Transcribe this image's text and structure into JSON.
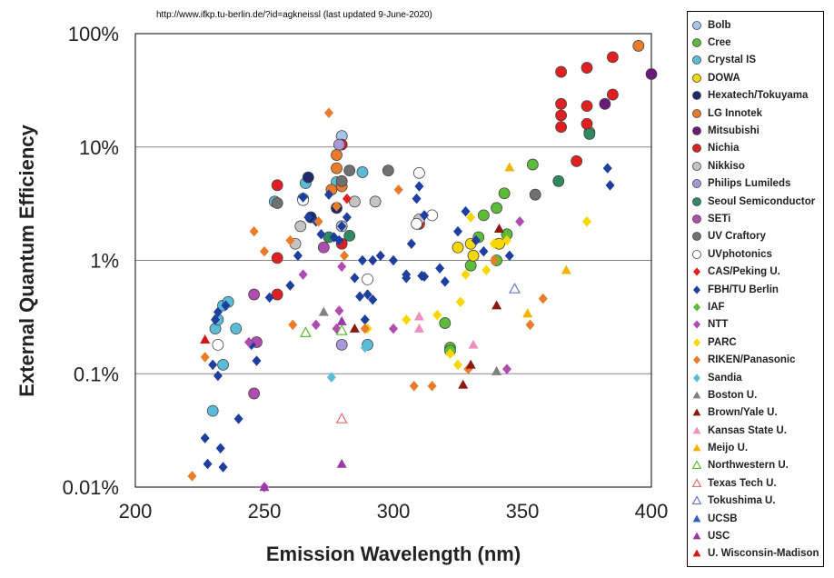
{
  "note": "http://www.ifkp.tu-berlin.de/?id=agkneissl   (last updated 9-June-2020)",
  "chart_data": {
    "type": "scatter",
    "xlabel": "Emission Wavelength (nm)",
    "ylabel": "External Quantum Efficiency",
    "xlim": [
      200,
      400
    ],
    "ylim": [
      0.01,
      100
    ],
    "yscale": "log",
    "x_ticks": [
      "200",
      "250",
      "300",
      "350",
      "400"
    ],
    "y_ticks": [
      "0.01%",
      "0.1%",
      "1%",
      "10%",
      "100%"
    ],
    "grid": "horizontal",
    "legend_position": "right",
    "series": [
      {
        "name": "Bolb",
        "marker": "circle",
        "color": "#a8c4e8",
        "points": [
          [
            280,
            12.5
          ]
        ]
      },
      {
        "name": "Cree",
        "marker": "circle",
        "color": "#5dbb3a",
        "points": [
          [
            322,
            0.17
          ],
          [
            330,
            0.9
          ],
          [
            333,
            1.6
          ],
          [
            335,
            2.5
          ],
          [
            340,
            2.9
          ],
          [
            341,
            1.4
          ],
          [
            343,
            3.9
          ],
          [
            344,
            1.7
          ],
          [
            340,
            1.0
          ],
          [
            354,
            7.0
          ],
          [
            376,
            13.5
          ],
          [
            322,
            0.16
          ],
          [
            320,
            0.28
          ]
        ]
      },
      {
        "name": "Crystal IS",
        "marker": "circle",
        "color": "#5bbcd8",
        "points": [
          [
            230,
            0.047
          ],
          [
            231,
            0.25
          ],
          [
            232,
            0.3
          ],
          [
            234,
            0.4
          ],
          [
            236,
            0.43
          ],
          [
            239,
            0.25
          ],
          [
            234,
            0.12
          ],
          [
            254,
            3.3
          ],
          [
            265,
            3.5
          ],
          [
            266,
            4.8
          ],
          [
            278,
            4.9
          ],
          [
            288,
            6.0
          ],
          [
            290,
            0.18
          ]
        ]
      },
      {
        "name": "DOWA",
        "marker": "circle",
        "color": "#f5d800",
        "points": [
          [
            325,
            1.3
          ],
          [
            330,
            1.4
          ],
          [
            341,
            1.4
          ],
          [
            331,
            1.1
          ]
        ]
      },
      {
        "name": "Hexatech/Tokuyama",
        "marker": "circle",
        "color": "#1a2a6c",
        "points": [
          [
            267,
            5.4
          ],
          [
            268,
            2.4
          ],
          [
            278,
            2.9
          ]
        ]
      },
      {
        "name": "LG Innotek",
        "marker": "circle",
        "color": "#e97c2a",
        "points": [
          [
            276,
            4.2
          ],
          [
            278,
            6.5
          ],
          [
            278,
            8.5
          ],
          [
            280,
            4.5
          ],
          [
            395,
            78
          ]
        ]
      },
      {
        "name": "Mitsubishi",
        "marker": "circle",
        "color": "#6a1a78",
        "points": [
          [
            382,
            24
          ],
          [
            400,
            44
          ]
        ]
      },
      {
        "name": "Nichia",
        "marker": "circle",
        "color": "#e02020",
        "points": [
          [
            255,
            4.6
          ],
          [
            255,
            1.05
          ],
          [
            255,
            0.5
          ],
          [
            280,
            10.5
          ],
          [
            280,
            1.4
          ],
          [
            365,
            46
          ],
          [
            365,
            24
          ],
          [
            365,
            19
          ],
          [
            365,
            15
          ],
          [
            375,
            50
          ],
          [
            375,
            23
          ],
          [
            375,
            16
          ],
          [
            385,
            62
          ],
          [
            385,
            29
          ],
          [
            371,
            7.5
          ],
          [
            310,
            2.1
          ]
        ]
      },
      {
        "name": "Nikkiso",
        "marker": "circle",
        "color": "#c4c4c4",
        "points": [
          [
            262,
            1.4
          ],
          [
            264,
            2.0
          ],
          [
            280,
            2.0
          ],
          [
            285,
            3.3
          ],
          [
            293,
            3.3
          ],
          [
            310,
            2.3
          ]
        ]
      },
      {
        "name": "Philips Lumileds",
        "marker": "circle",
        "color": "#a898d8",
        "points": [
          [
            279,
            10.5
          ],
          [
            280,
            0.18
          ]
        ]
      },
      {
        "name": "Seoul Semiconductor",
        "marker": "circle",
        "color": "#2f8a60",
        "points": [
          [
            275,
            1.6
          ],
          [
            283,
            1.65
          ],
          [
            364,
            5.0
          ],
          [
            376,
            13.0
          ]
        ]
      },
      {
        "name": "SETi",
        "marker": "circle",
        "color": "#b04cb0",
        "points": [
          [
            246,
            0.5
          ],
          [
            246,
            0.067
          ],
          [
            247,
            0.19
          ],
          [
            273,
            1.3
          ]
        ]
      },
      {
        "name": "UV Craftory",
        "marker": "circle",
        "color": "#707070",
        "points": [
          [
            255,
            3.2
          ],
          [
            280,
            5.0
          ],
          [
            283,
            6.2
          ],
          [
            298,
            6.2
          ],
          [
            355,
            3.8
          ]
        ]
      },
      {
        "name": "UVphotonics",
        "marker": "circle",
        "color": "#ffffff",
        "points": [
          [
            232,
            0.18
          ],
          [
            265,
            3.4
          ],
          [
            290,
            0.68
          ],
          [
            309,
            2.1
          ],
          [
            310,
            5.9
          ],
          [
            315,
            2.5
          ]
        ]
      },
      {
        "name": "CAS/Peking U.",
        "marker": "diamond",
        "color": "#e02020",
        "points": [
          [
            282,
            3.5
          ]
        ]
      },
      {
        "name": "FBH/TU Berlin",
        "marker": "diamond",
        "color": "#1f3f9f",
        "points": [
          [
            227,
            0.027
          ],
          [
            228,
            0.016
          ],
          [
            230,
            0.12
          ],
          [
            232,
            0.096
          ],
          [
            233,
            0.022
          ],
          [
            234,
            0.015
          ],
          [
            231,
            0.3
          ],
          [
            232,
            0.35
          ],
          [
            235,
            0.4
          ],
          [
            240,
            0.04
          ],
          [
            245,
            0.18
          ],
          [
            247,
            0.13
          ],
          [
            252,
            0.47
          ],
          [
            260,
            0.6
          ],
          [
            263,
            1.1
          ],
          [
            265,
            3.6
          ],
          [
            267,
            2.4
          ],
          [
            270,
            2.2
          ],
          [
            272,
            1.7
          ],
          [
            275,
            3.8
          ],
          [
            277,
            1.6
          ],
          [
            279,
            1.5
          ],
          [
            280,
            2.0
          ],
          [
            282,
            2.4
          ],
          [
            285,
            0.7
          ],
          [
            288,
            1.0
          ],
          [
            290,
            0.5
          ],
          [
            292,
            1.0
          ],
          [
            295,
            1.1
          ],
          [
            300,
            1.0
          ],
          [
            305,
            0.7
          ],
          [
            307,
            1.4
          ],
          [
            309,
            3.5
          ],
          [
            310,
            4.5
          ],
          [
            311,
            0.73
          ],
          [
            312,
            2.5
          ],
          [
            318,
            0.85
          ],
          [
            320,
            0.65
          ],
          [
            325,
            1.8
          ],
          [
            328,
            2.7
          ],
          [
            332,
            1.5
          ],
          [
            335,
            1.2
          ],
          [
            345,
            1.1
          ],
          [
            383,
            6.5
          ],
          [
            384,
            4.6
          ],
          [
            292,
            0.45
          ],
          [
            289,
            0.3
          ],
          [
            305,
            0.75
          ],
          [
            312,
            0.72
          ],
          [
            287,
            0.48
          ]
        ]
      },
      {
        "name": "IAF",
        "marker": "diamond",
        "color": "#5dbb3a",
        "points": []
      },
      {
        "name": "NTT",
        "marker": "diamond",
        "color": "#b04cb0",
        "points": [
          [
            244,
            0.19
          ],
          [
            250,
            0.01
          ],
          [
            265,
            0.75
          ],
          [
            270,
            0.27
          ],
          [
            278,
            0.25
          ],
          [
            279,
            0.36
          ],
          [
            280,
            0.88
          ],
          [
            300,
            0.25
          ],
          [
            344,
            0.11
          ],
          [
            349,
            2.2
          ]
        ]
      },
      {
        "name": "PARC",
        "marker": "diamond",
        "color": "#f5d800",
        "points": [
          [
            290,
            0.25
          ],
          [
            305,
            0.3
          ],
          [
            317,
            0.33
          ],
          [
            322,
            0.15
          ],
          [
            326,
            0.43
          ],
          [
            328,
            0.75
          ],
          [
            330,
            2.4
          ],
          [
            336,
            0.82
          ],
          [
            339,
            1.4
          ],
          [
            344,
            1.5
          ],
          [
            375,
            2.2
          ],
          [
            325,
            0.12
          ]
        ]
      },
      {
        "name": "RIKEN/Panasonic",
        "marker": "diamond",
        "color": "#e97c2a",
        "points": [
          [
            222,
            0.0125
          ],
          [
            227,
            0.14
          ],
          [
            246,
            1.8
          ],
          [
            250,
            1.2
          ],
          [
            261,
            0.27
          ],
          [
            271,
            2.2
          ],
          [
            275,
            20
          ],
          [
            278,
            3.0
          ],
          [
            281,
            1.1
          ],
          [
            302,
            4.2
          ],
          [
            308,
            0.078
          ],
          [
            315,
            0.078
          ],
          [
            329,
            0.11
          ],
          [
            339,
            1.0
          ],
          [
            353,
            0.27
          ],
          [
            358,
            0.46
          ],
          [
            289,
            0.25
          ],
          [
            260,
            1.5
          ]
        ]
      },
      {
        "name": "Sandia",
        "marker": "diamond",
        "color": "#5bbcd8",
        "points": [
          [
            276,
            0.093
          ],
          [
            289,
            0.17
          ]
        ]
      },
      {
        "name": "Boston U.",
        "marker": "triangle",
        "color": "#808080",
        "points": [
          [
            273,
            0.35
          ],
          [
            340,
            0.105
          ]
        ]
      },
      {
        "name": "Brown/Yale U.",
        "marker": "triangle",
        "color": "#8b1a10",
        "points": [
          [
            285,
            0.25
          ],
          [
            327,
            0.08
          ],
          [
            330,
            0.12
          ],
          [
            340,
            0.4
          ],
          [
            341,
            1.9
          ]
        ]
      },
      {
        "name": "Kansas State U.",
        "marker": "triangle",
        "color": "#f090c0",
        "points": [
          [
            310,
            0.25
          ],
          [
            310,
            0.32
          ],
          [
            331,
            0.18
          ],
          [
            280,
            0.04
          ]
        ]
      },
      {
        "name": "Meijo U.",
        "marker": "triangle",
        "color": "#f0b400",
        "points": [
          [
            345,
            6.6
          ],
          [
            352,
            0.34
          ],
          [
            367,
            0.82
          ]
        ]
      },
      {
        "name": "Northwestern U.",
        "marker": "triangle",
        "color": "#5dbb3a",
        "points": [
          [
            266,
            0.23
          ],
          [
            280,
            0.24
          ]
        ]
      },
      {
        "name": "Texas Tech U.",
        "marker": "triangle",
        "color": "#e87070",
        "points": [
          [
            280,
            0.04
          ]
        ]
      },
      {
        "name": "Tokushima U.",
        "marker": "triangle",
        "color": "#6c78c8",
        "points": [
          [
            347,
            0.56
          ]
        ]
      },
      {
        "name": "UCSB",
        "marker": "triangle",
        "color": "#3060c0",
        "points": []
      },
      {
        "name": "USC",
        "marker": "triangle",
        "color": "#9a3aa8",
        "points": [
          [
            250,
            0.01
          ],
          [
            280,
            0.016
          ],
          [
            280,
            0.29
          ]
        ]
      },
      {
        "name": "U. Wisconsin-Madison",
        "marker": "triangle",
        "color": "#d01818",
        "points": [
          [
            227,
            0.2
          ]
        ]
      }
    ]
  }
}
